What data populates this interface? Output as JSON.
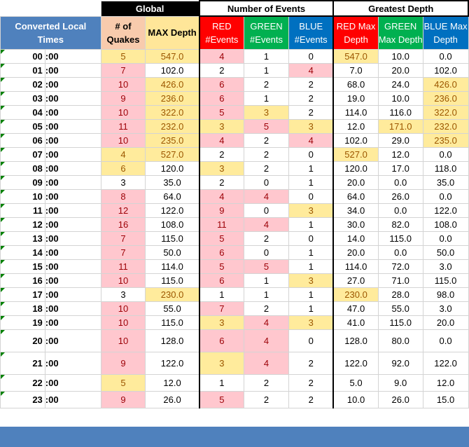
{
  "headers": {
    "group_global": "Global",
    "group_events": "Number of Events",
    "group_depth": "Greatest Depth",
    "converted_local_times": "Converted Local Times",
    "quakes": "# of Quakes",
    "max_depth": "MAX Depth",
    "red_events": "RED #Events",
    "green_events": "GREEN #Events",
    "blue_events": "BLUE #Events",
    "red_max_depth": "RED Max Depth",
    "green_max_depth": "GREEN Max Depth",
    "blue_max_depth": "BLUE Max Depth"
  },
  "colors": {
    "header_blue": "#4f81bd",
    "highlight_pink": "#ffc7ce",
    "highlight_yellow": "#ffeb9c",
    "red": "#ff0000",
    "green": "#00b050",
    "blue": "#0070c0"
  },
  "rows": [
    {
      "hour": "00",
      "min": ":00",
      "quakes": "5",
      "max": "547.0",
      "red": "4",
      "green": "1",
      "blue": "0",
      "redmax": "547.0",
      "greenmax": "10.0",
      "bluemax": "0.0"
    },
    {
      "hour": "01",
      "min": ":00",
      "quakes": "7",
      "max": "102.0",
      "red": "2",
      "green": "1",
      "blue": "4",
      "redmax": "7.0",
      "greenmax": "20.0",
      "bluemax": "102.0"
    },
    {
      "hour": "02",
      "min": ":00",
      "quakes": "10",
      "max": "426.0",
      "red": "6",
      "green": "2",
      "blue": "2",
      "redmax": "68.0",
      "greenmax": "24.0",
      "bluemax": "426.0"
    },
    {
      "hour": "03",
      "min": ":00",
      "quakes": "9",
      "max": "236.0",
      "red": "6",
      "green": "1",
      "blue": "2",
      "redmax": "19.0",
      "greenmax": "10.0",
      "bluemax": "236.0"
    },
    {
      "hour": "04",
      "min": ":00",
      "quakes": "10",
      "max": "322.0",
      "red": "5",
      "green": "3",
      "blue": "2",
      "redmax": "114.0",
      "greenmax": "116.0",
      "bluemax": "322.0"
    },
    {
      "hour": "05",
      "min": ":00",
      "quakes": "11",
      "max": "232.0",
      "red": "3",
      "green": "5",
      "blue": "3",
      "redmax": "12.0",
      "greenmax": "171.0",
      "bluemax": "232.0"
    },
    {
      "hour": "06",
      "min": ":00",
      "quakes": "10",
      "max": "235.0",
      "red": "4",
      "green": "2",
      "blue": "4",
      "redmax": "102.0",
      "greenmax": "29.0",
      "bluemax": "235.0"
    },
    {
      "hour": "07",
      "min": ":00",
      "quakes": "4",
      "max": "527.0",
      "red": "2",
      "green": "2",
      "blue": "0",
      "redmax": "527.0",
      "greenmax": "12.0",
      "bluemax": "0.0"
    },
    {
      "hour": "08",
      "min": ":00",
      "quakes": "6",
      "max": "120.0",
      "red": "3",
      "green": "2",
      "blue": "1",
      "redmax": "120.0",
      "greenmax": "17.0",
      "bluemax": "118.0"
    },
    {
      "hour": "09",
      "min": ":00",
      "quakes": "3",
      "max": "35.0",
      "red": "2",
      "green": "0",
      "blue": "1",
      "redmax": "20.0",
      "greenmax": "0.0",
      "bluemax": "35.0"
    },
    {
      "hour": "10",
      "min": ":00",
      "quakes": "8",
      "max": "64.0",
      "red": "4",
      "green": "4",
      "blue": "0",
      "redmax": "64.0",
      "greenmax": "26.0",
      "bluemax": "0.0"
    },
    {
      "hour": "11",
      "min": ":00",
      "quakes": "12",
      "max": "122.0",
      "red": "9",
      "green": "0",
      "blue": "3",
      "redmax": "34.0",
      "greenmax": "0.0",
      "bluemax": "122.0"
    },
    {
      "hour": "12",
      "min": ":00",
      "quakes": "16",
      "max": "108.0",
      "red": "11",
      "green": "4",
      "blue": "1",
      "redmax": "30.0",
      "greenmax": "82.0",
      "bluemax": "108.0"
    },
    {
      "hour": "13",
      "min": ":00",
      "quakes": "7",
      "max": "115.0",
      "red": "5",
      "green": "2",
      "blue": "0",
      "redmax": "14.0",
      "greenmax": "115.0",
      "bluemax": "0.0"
    },
    {
      "hour": "14",
      "min": ":00",
      "quakes": "7",
      "max": "50.0",
      "red": "6",
      "green": "0",
      "blue": "1",
      "redmax": "20.0",
      "greenmax": "0.0",
      "bluemax": "50.0"
    },
    {
      "hour": "15",
      "min": ":00",
      "quakes": "11",
      "max": "114.0",
      "red": "5",
      "green": "5",
      "blue": "1",
      "redmax": "114.0",
      "greenmax": "72.0",
      "bluemax": "3.0"
    },
    {
      "hour": "16",
      "min": ":00",
      "quakes": "10",
      "max": "115.0",
      "red": "6",
      "green": "1",
      "blue": "3",
      "redmax": "27.0",
      "greenmax": "71.0",
      "bluemax": "115.0"
    },
    {
      "hour": "17",
      "min": ":00",
      "quakes": "3",
      "max": "230.0",
      "red": "1",
      "green": "1",
      "blue": "1",
      "redmax": "230.0",
      "greenmax": "28.0",
      "bluemax": "98.0"
    },
    {
      "hour": "18",
      "min": ":00",
      "quakes": "10",
      "max": "55.0",
      "red": "7",
      "green": "2",
      "blue": "1",
      "redmax": "47.0",
      "greenmax": "55.0",
      "bluemax": "3.0"
    },
    {
      "hour": "19",
      "min": ":00",
      "quakes": "10",
      "max": "115.0",
      "red": "3",
      "green": "4",
      "blue": "3",
      "redmax": "41.0",
      "greenmax": "115.0",
      "bluemax": "20.0"
    },
    {
      "hour": "20",
      "min": ":00",
      "quakes": "10",
      "max": "128.0",
      "red": "6",
      "green": "4",
      "blue": "0",
      "redmax": "128.0",
      "greenmax": "80.0",
      "bluemax": "0.0"
    },
    {
      "hour": "21",
      "min": ":00",
      "quakes": "9",
      "max": "122.0",
      "red": "3",
      "green": "4",
      "blue": "2",
      "redmax": "122.0",
      "greenmax": "92.0",
      "bluemax": "122.0"
    },
    {
      "hour": "22",
      "min": ":00",
      "quakes": "5",
      "max": "12.0",
      "red": "1",
      "green": "2",
      "blue": "2",
      "redmax": "5.0",
      "greenmax": "9.0",
      "bluemax": "12.0"
    },
    {
      "hour": "23",
      "min": ":00",
      "quakes": "9",
      "max": "26.0",
      "red": "5",
      "green": "2",
      "blue": "2",
      "redmax": "10.0",
      "greenmax": "26.0",
      "bluemax": "15.0"
    }
  ],
  "highlights": [
    [
      "y",
      "y",
      "p",
      "",
      "",
      "y",
      "",
      ""
    ],
    [
      "p",
      "",
      "",
      "",
      "p",
      "",
      "",
      ""
    ],
    [
      "p",
      "y",
      "p",
      "",
      "",
      "",
      "",
      "y"
    ],
    [
      "p",
      "y",
      "p",
      "",
      "",
      "",
      "",
      "y"
    ],
    [
      "p",
      "y",
      "p",
      "y",
      "",
      "",
      "",
      "y"
    ],
    [
      "p",
      "y",
      "y",
      "p",
      "y",
      "",
      "y",
      "y"
    ],
    [
      "p",
      "y",
      "p",
      "",
      "p",
      "",
      "",
      "y"
    ],
    [
      "y",
      "y",
      "",
      "",
      "",
      "y",
      "",
      ""
    ],
    [
      "y",
      "",
      "y",
      "",
      "",
      "",
      "",
      ""
    ],
    [
      "",
      "",
      "",
      "",
      "",
      "",
      "",
      ""
    ],
    [
      "p",
      "",
      "p",
      "p",
      "",
      "",
      "",
      ""
    ],
    [
      "p",
      "",
      "p",
      "",
      "y",
      "",
      "",
      ""
    ],
    [
      "p",
      "",
      "p",
      "p",
      "",
      "",
      "",
      ""
    ],
    [
      "p",
      "",
      "p",
      "",
      "",
      "",
      "",
      ""
    ],
    [
      "p",
      "",
      "p",
      "",
      "",
      "",
      "",
      ""
    ],
    [
      "p",
      "",
      "p",
      "p",
      "",
      "",
      "",
      ""
    ],
    [
      "p",
      "",
      "p",
      "",
      "y",
      "",
      "",
      ""
    ],
    [
      "",
      "y",
      "",
      "",
      "",
      "y",
      "",
      ""
    ],
    [
      "p",
      "",
      "p",
      "",
      "",
      "",
      "",
      ""
    ],
    [
      "p",
      "",
      "y",
      "p",
      "y",
      "",
      "",
      ""
    ],
    [
      "p",
      "",
      "p",
      "p",
      "",
      "",
      "",
      ""
    ],
    [
      "p",
      "",
      "y",
      "p",
      "",
      "",
      "",
      ""
    ],
    [
      "y",
      "",
      "",
      "",
      "",
      "",
      "",
      ""
    ],
    [
      "p",
      "",
      "p",
      "",
      "",
      "",
      "",
      ""
    ]
  ],
  "row_heights": [
    20,
    20,
    20,
    20,
    20,
    20,
    20,
    20,
    20,
    20,
    20,
    20,
    20,
    20,
    20,
    20,
    20,
    20,
    20,
    20,
    32,
    32,
    24,
    24
  ]
}
